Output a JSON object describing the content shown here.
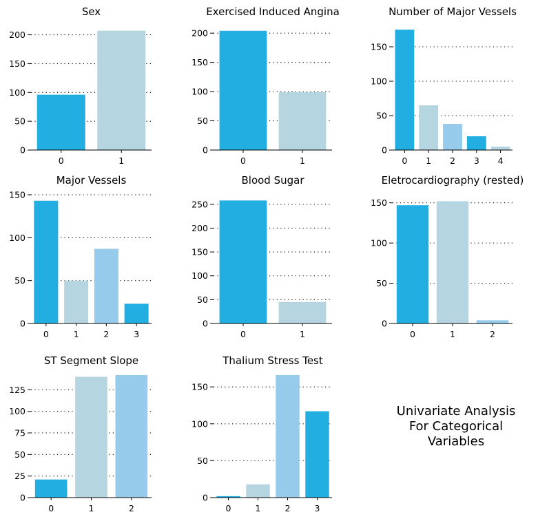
{
  "figure": {
    "caption_lines": [
      "Univariate Analysis",
      "For Categorical",
      "Variables"
    ]
  },
  "colors": {
    "palette": [
      "#22aee0",
      "#b5d5e0",
      "#97cbec"
    ],
    "grid": "#000000",
    "axis": "#000000"
  },
  "chart_data": [
    {
      "type": "bar",
      "title": "Sex",
      "categories": [
        "0",
        "1"
      ],
      "values": [
        96,
        207
      ],
      "ylim": [
        0,
        215
      ],
      "yticks": [
        0,
        50,
        100,
        150,
        200
      ],
      "grid": "horizontal dotted",
      "xlabel": "",
      "ylabel": ""
    },
    {
      "type": "bar",
      "title": "Exercised Induced Angina",
      "categories": [
        "0",
        "1"
      ],
      "values": [
        204,
        99
      ],
      "ylim": [
        0,
        212
      ],
      "yticks": [
        0,
        50,
        100,
        150,
        200
      ],
      "grid": "horizontal dotted",
      "xlabel": "",
      "ylabel": ""
    },
    {
      "type": "bar",
      "title": "Number of Major Vessels",
      "categories": [
        "0",
        "1",
        "2",
        "3",
        "4"
      ],
      "values": [
        175,
        65,
        38,
        20,
        5
      ],
      "ylim": [
        0,
        180
      ],
      "yticks": [
        0,
        50,
        100,
        150
      ],
      "grid": "horizontal dotted",
      "xlabel": "",
      "ylabel": ""
    },
    {
      "type": "bar",
      "title": "Major Vessels",
      "categories": [
        "0",
        "1",
        "2",
        "3"
      ],
      "values": [
        143,
        50,
        87,
        23
      ],
      "ylim": [
        0,
        150
      ],
      "yticks": [
        0,
        50,
        100,
        150
      ],
      "grid": "horizontal dotted",
      "xlabel": "",
      "ylabel": ""
    },
    {
      "type": "bar",
      "title": "Blood Sugar",
      "categories": [
        "0",
        "1"
      ],
      "values": [
        258,
        45
      ],
      "ylim": [
        0,
        270
      ],
      "yticks": [
        0,
        50,
        100,
        150,
        200,
        250
      ],
      "grid": "horizontal dotted",
      "xlabel": "",
      "ylabel": ""
    },
    {
      "type": "bar",
      "title": "Eletrocardiography (rested)",
      "categories": [
        "0",
        "1",
        "2"
      ],
      "values": [
        147,
        152,
        4
      ],
      "ylim": [
        0,
        160
      ],
      "yticks": [
        0,
        50,
        100,
        150
      ],
      "grid": "horizontal dotted",
      "xlabel": "",
      "ylabel": ""
    },
    {
      "type": "bar",
      "title": "ST Segment Slope",
      "categories": [
        "0",
        "1",
        "2"
      ],
      "values": [
        21,
        140,
        142
      ],
      "ylim": [
        0,
        142
      ],
      "yticks": [
        0,
        25,
        50,
        75,
        100,
        125
      ],
      "grid": "horizontal dotted",
      "xlabel": "",
      "ylabel": ""
    },
    {
      "type": "bar",
      "title": "Thalium Stress Test",
      "categories": [
        "0",
        "1",
        "2",
        "3"
      ],
      "values": [
        2,
        18,
        166,
        117
      ],
      "ylim": [
        0,
        166
      ],
      "yticks": [
        0,
        50,
        100,
        150
      ],
      "grid": "horizontal dotted",
      "xlabel": "",
      "ylabel": ""
    }
  ]
}
